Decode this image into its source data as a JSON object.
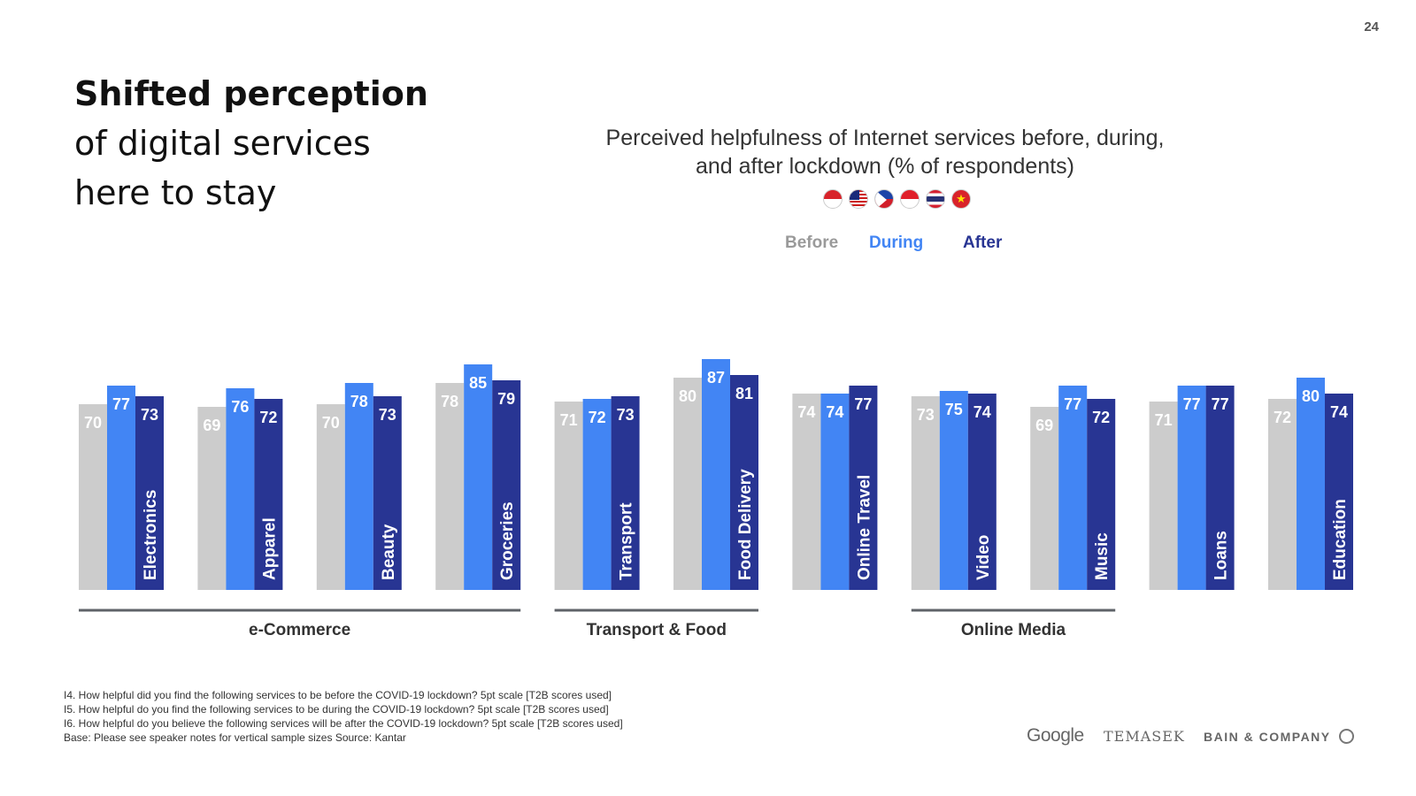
{
  "page_number": "24",
  "headline": {
    "line1": "Shifted perception",
    "line2": "of digital services",
    "line3": "here to stay"
  },
  "flags": [
    {
      "icon": "indonesia-flag-icon"
    },
    {
      "icon": "malaysia-flag-icon"
    },
    {
      "icon": "philippines-flag-icon"
    },
    {
      "icon": "singapore-flag-icon"
    },
    {
      "icon": "thailand-flag-icon"
    },
    {
      "icon": "vietnam-flag-icon",
      "glyph": "★"
    }
  ],
  "footnotes": {
    "line1": "I4. How helpful did you find the following services to be before the COVID-19 lockdown? 5pt scale [T2B scores used]",
    "line2": "I5. How helpful do you find the following services to be during the COVID-19 lockdown? 5pt scale [T2B scores used]",
    "line3": "I6. How helpful do you believe the following services will be after the COVID-19 lockdown? 5pt scale [T2B scores used]",
    "line4": "Base: Please see speaker notes for vertical sample sizes Source: Kantar"
  },
  "logos": {
    "google": "Google",
    "temasek": "TEMASEK",
    "bain": "BAIN & COMPANY"
  },
  "colors": {
    "before": "#cccccc",
    "during": "#4285f4",
    "after": "#283593",
    "group_line": "#5f6368"
  },
  "chart_data": {
    "type": "bar",
    "title": "Perceived helpfulness of Internet services before, during, and after lockdown (% of respondents)",
    "title_line1": "Perceived helpfulness of Internet services before, during,",
    "title_line2": "and after lockdown (% of respondents)",
    "ylim": [
      0,
      100
    ],
    "legend": [
      "Before",
      "During",
      "After"
    ],
    "categories": [
      "Electronics",
      "Apparel",
      "Beauty",
      "Groceries",
      "Transport",
      "Food Delivery",
      "Online Travel",
      "Video",
      "Music",
      "Loans",
      "Education"
    ],
    "series": [
      {
        "name": "Before",
        "values": [
          70,
          69,
          70,
          78,
          71,
          80,
          74,
          73,
          69,
          71,
          72
        ]
      },
      {
        "name": "During",
        "values": [
          77,
          76,
          78,
          85,
          72,
          87,
          74,
          75,
          77,
          77,
          80
        ]
      },
      {
        "name": "After",
        "values": [
          73,
          72,
          73,
          79,
          73,
          81,
          77,
          74,
          72,
          77,
          74
        ]
      }
    ],
    "groups": [
      {
        "label": "e-Commerce",
        "from": 0,
        "to": 3
      },
      {
        "label": "Transport & Food",
        "from": 4,
        "to": 5
      },
      {
        "label": "Online Media",
        "from": 7,
        "to": 8
      }
    ]
  }
}
